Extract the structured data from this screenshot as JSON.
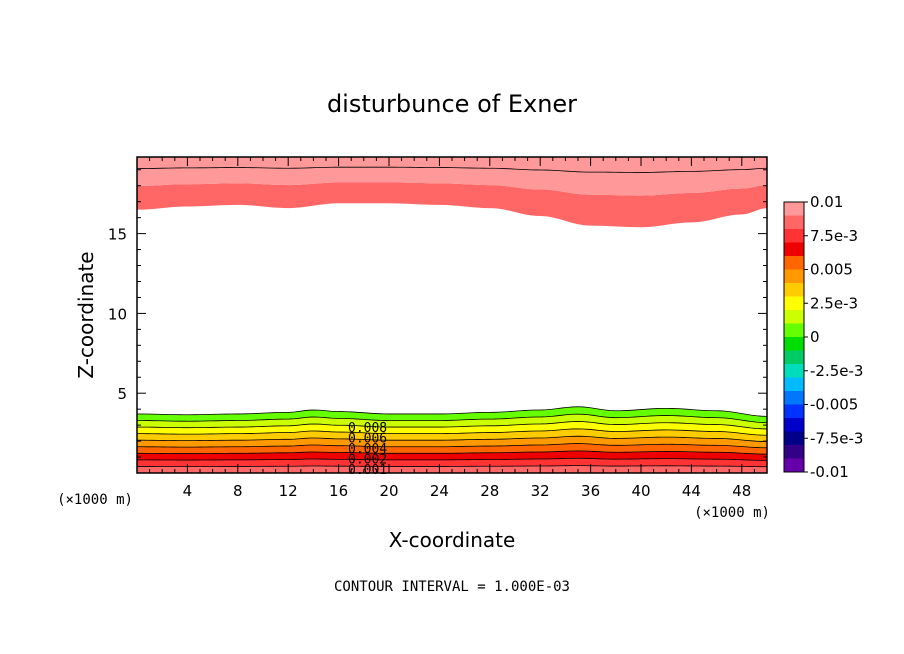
{
  "chart_data": {
    "type": "heatmap",
    "title": "disturbunce of Exner",
    "xlabel": "X-coordinate",
    "ylabel": "Z-coordinate",
    "x_unit_left": "(×1000 m)",
    "x_unit_right": "(×1000 m)",
    "xlim": [
      0,
      50
    ],
    "ylim": [
      0,
      19.8
    ],
    "x_ticks": [
      4,
      8,
      12,
      16,
      20,
      24,
      28,
      32,
      36,
      40,
      44,
      48
    ],
    "x_tick_labels": [
      "4",
      "8",
      "12",
      "16",
      "20",
      "24",
      "28",
      "32",
      "36",
      "40",
      "44",
      "48"
    ],
    "y_ticks": [
      5,
      10,
      15
    ],
    "y_tick_labels": [
      "5",
      "10",
      "15"
    ],
    "footnote": "CONTOUR INTERVAL = 1.000E-03",
    "contour_labels": [
      "0.008",
      "0.006",
      "0.004",
      "0.002",
      "0.001"
    ],
    "colorbar": {
      "tick_labels": [
        "0.01",
        "7.5e-3",
        "0.005",
        "2.5e-3",
        "0",
        "-2.5e-3",
        "-0.005",
        "-7.5e-3",
        "-0.01"
      ],
      "range": [
        -0.01,
        0.01
      ],
      "colors": [
        "#ff9999",
        "#ff6666",
        "#ff3333",
        "#ee0000",
        "#ff6600",
        "#ff9900",
        "#ffcc00",
        "#ffff00",
        "#ccff00",
        "#66ff00",
        "#00dd00",
        "#00cc66",
        "#00ddbb",
        "#00bbff",
        "#0077ff",
        "#0033ff",
        "#0000cc",
        "#000088",
        "#330088",
        "#6600aa"
      ]
    },
    "upper_layer": {
      "value_range": [
        0.008,
        0.01
      ],
      "base_profile": {
        "x": [
          0,
          4,
          8,
          12,
          16,
          20,
          24,
          28,
          32,
          36,
          40,
          44,
          48,
          50
        ],
        "z": [
          16.5,
          16.7,
          16.8,
          16.6,
          16.9,
          16.9,
          16.8,
          16.6,
          16.1,
          15.5,
          15.4,
          15.7,
          16.2,
          16.6
        ]
      }
    },
    "lower_layer": {
      "value_range": [
        0,
        0.009
      ],
      "top_profile": {
        "x": [
          0,
          4,
          8,
          12,
          14,
          16,
          20,
          24,
          28,
          32,
          35,
          38,
          42,
          46,
          50
        ],
        "z": [
          3.7,
          3.65,
          3.7,
          3.8,
          3.95,
          3.85,
          3.7,
          3.7,
          3.8,
          3.95,
          4.15,
          3.9,
          4.05,
          3.9,
          3.55
        ]
      }
    }
  }
}
